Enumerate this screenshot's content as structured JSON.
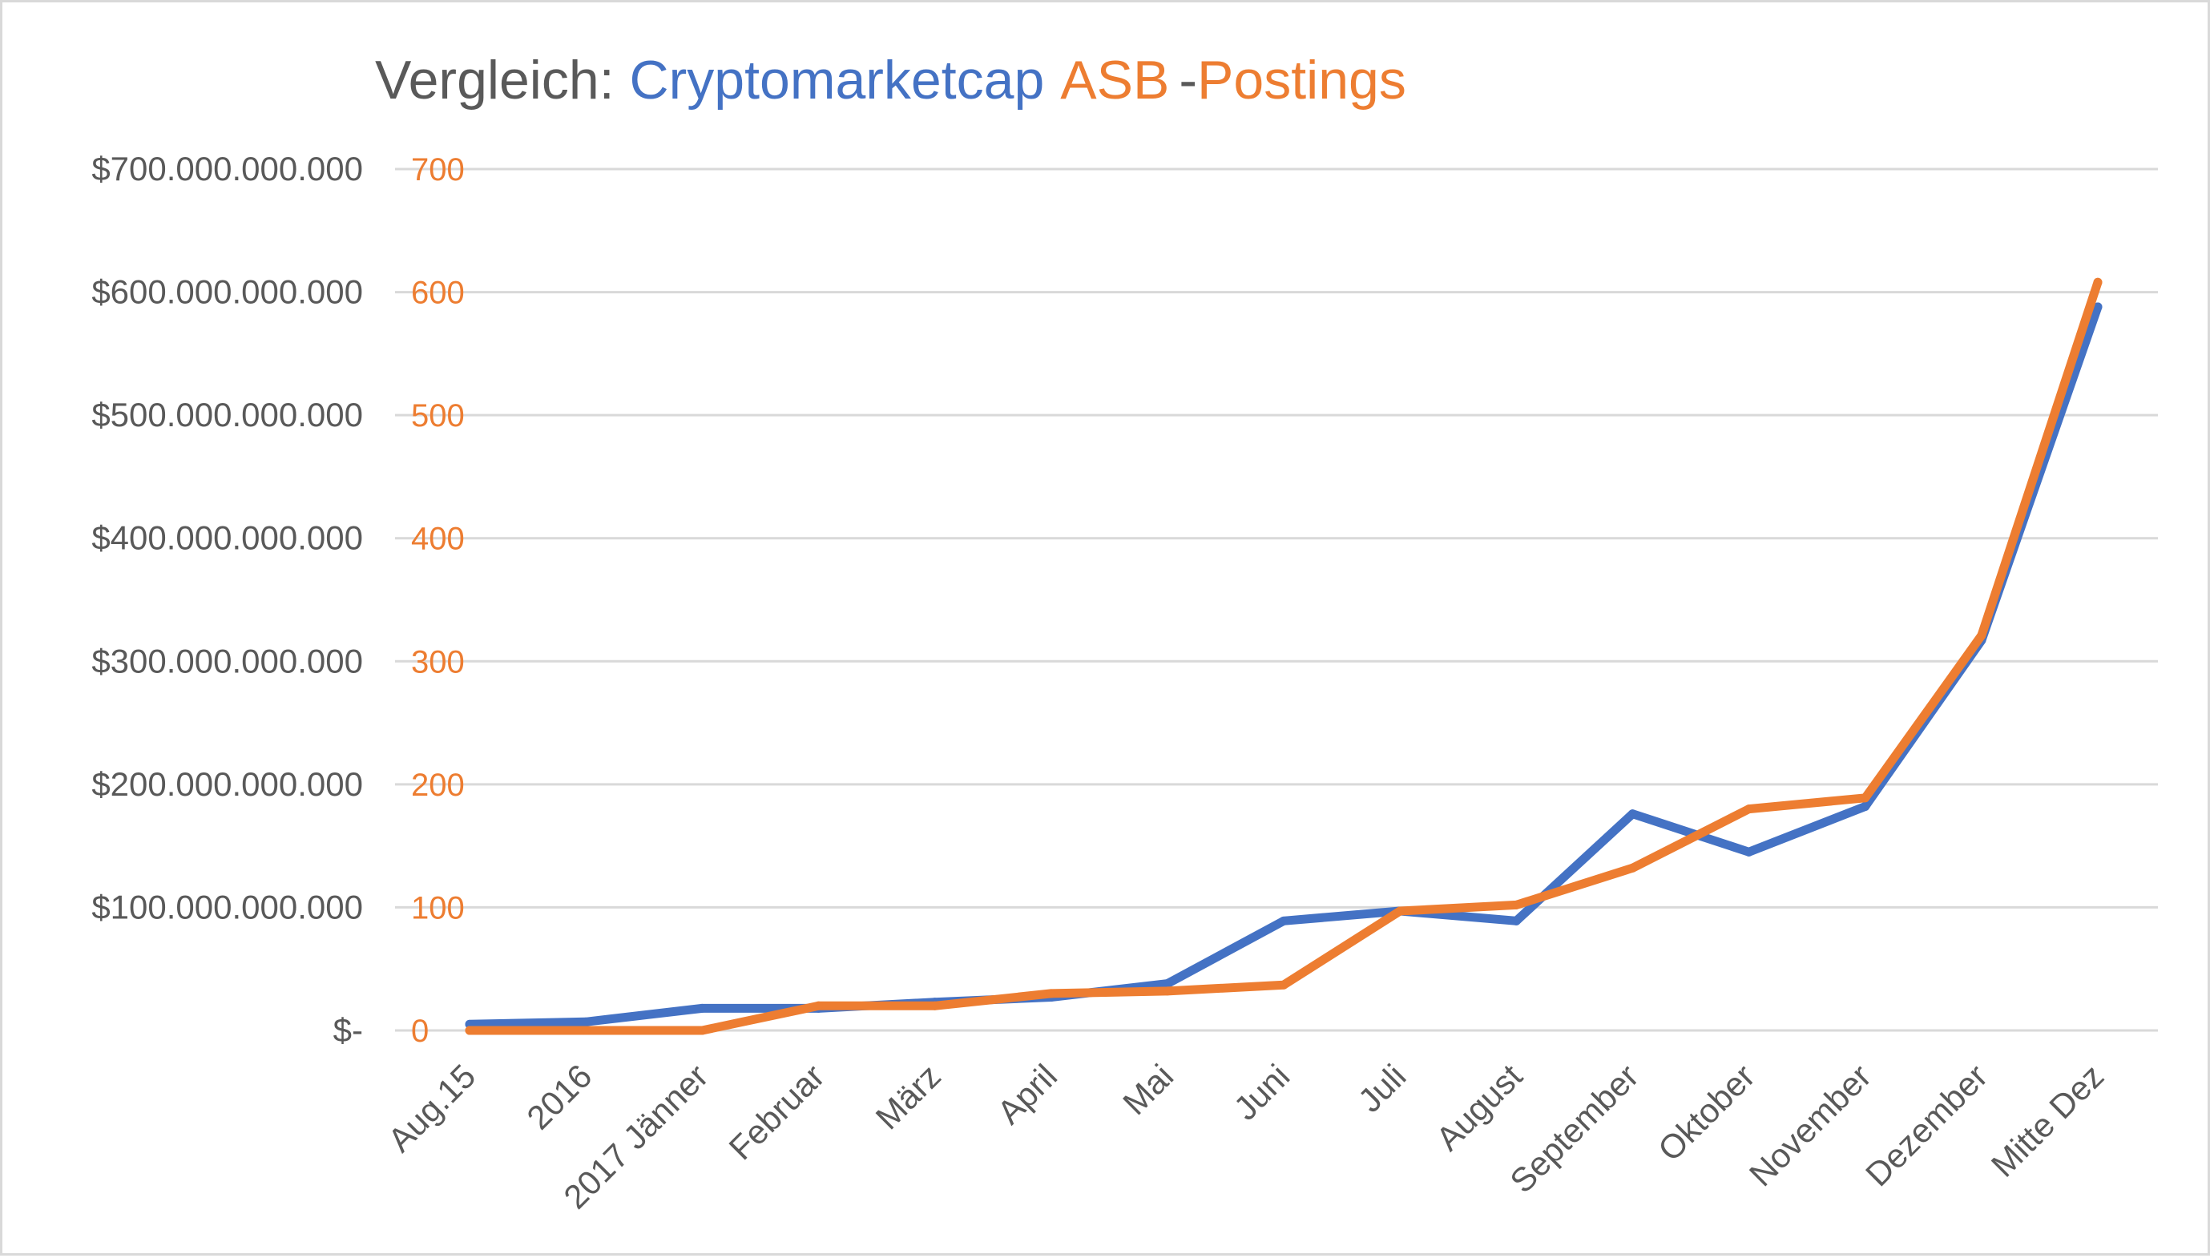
{
  "chart_data": {
    "type": "line",
    "title": {
      "prefix": "Vergleich: ",
      "series1": "Cryptomarketcap",
      "series2_a": "ASB",
      "separator": "-",
      "series2_b": "Postings"
    },
    "colors": {
      "series1": "#4472C4",
      "series2": "#ED7D31",
      "axis_text": "#595959",
      "title_prefix": "#595959",
      "separator": "#595959",
      "grid": "#d9d9d9"
    },
    "categories": [
      "Aug.15",
      "2016",
      "2017 Jänner",
      "Februar",
      "März",
      "April",
      "Mai",
      "Juni",
      "Juli",
      "August",
      "September",
      "Oktober",
      "November",
      "Dezember",
      "Mitte Dez"
    ],
    "y_left": {
      "ylim": [
        0,
        700000000000
      ],
      "tick_labels": [
        "$-",
        "$100.000.000.000",
        "$200.000.000.000",
        "$300.000.000.000",
        "$400.000.000.000",
        "$500.000.000.000",
        "$600.000.000.000",
        "$700.000.000.000"
      ]
    },
    "y_right": {
      "ylim": [
        0,
        700
      ],
      "tick_labels": [
        "0",
        "100",
        "200",
        "300",
        "400",
        "500",
        "600",
        "700"
      ]
    },
    "grid": true,
    "series": [
      {
        "axis": "left",
        "values": [
          5000000000,
          7000000000,
          18000000000,
          18000000000,
          23000000000,
          27000000000,
          38000000000,
          89000000000,
          97000000000,
          89000000000,
          176000000000,
          145000000000,
          182000000000,
          317000000000,
          588000000000
        ]
      },
      {
        "axis": "right",
        "values": [
          0,
          0,
          0,
          20,
          20,
          30,
          32,
          37,
          97,
          102,
          132,
          180,
          189,
          321,
          608
        ]
      }
    ]
  }
}
